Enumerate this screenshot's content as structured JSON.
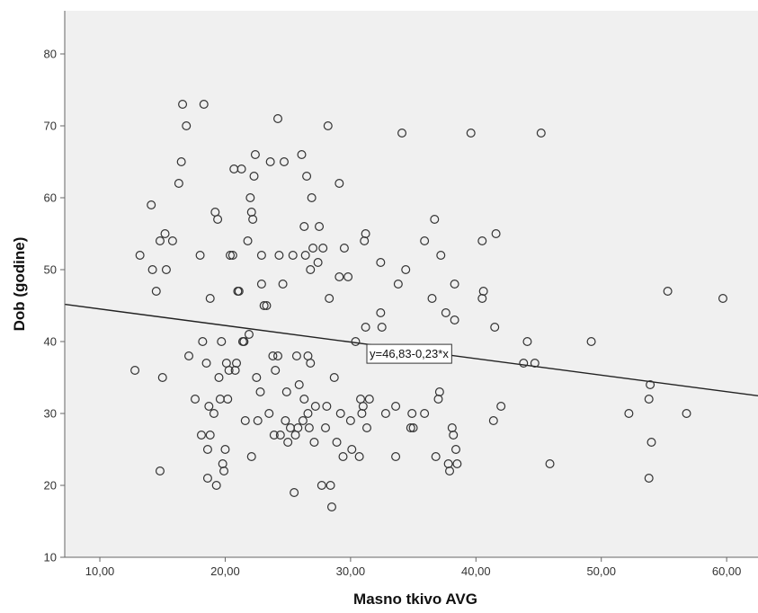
{
  "chart_data": {
    "type": "scatter",
    "xlabel": "Masno tkivo AVG",
    "ylabel": "Dob (godine)",
    "xlim": [
      7.2,
      62.5
    ],
    "ylim": [
      10,
      86
    ],
    "x_ticks": [
      10,
      20,
      30,
      40,
      50,
      60
    ],
    "x_tick_labels": [
      "10,00",
      "20,00",
      "30,00",
      "40,00",
      "50,00",
      "60,00"
    ],
    "y_ticks": [
      10,
      20,
      30,
      40,
      50,
      60,
      70,
      80
    ],
    "y_tick_labels": [
      "10",
      "20",
      "30",
      "40",
      "50",
      "60",
      "70",
      "80"
    ],
    "grid": false,
    "legend": "none",
    "colors": {
      "plot_background": "#f0f0f0",
      "marker": "#333333",
      "line": "#222222"
    },
    "regression": {
      "label": "y=46,83-0,23*x",
      "intercept": 46.83,
      "slope": -0.23,
      "x_range": [
        7.2,
        62.5
      ],
      "label_at": [
        31.3,
        38.3
      ]
    },
    "points": [
      [
        12.8,
        36
      ],
      [
        13.2,
        52
      ],
      [
        14.1,
        59
      ],
      [
        14.2,
        50
      ],
      [
        14.5,
        47
      ],
      [
        14.8,
        54
      ],
      [
        15.0,
        35
      ],
      [
        15.2,
        55
      ],
      [
        15.3,
        50
      ],
      [
        15.8,
        54
      ],
      [
        14.8,
        22
      ],
      [
        16.3,
        62
      ],
      [
        16.5,
        65
      ],
      [
        16.6,
        73
      ],
      [
        16.9,
        70
      ],
      [
        17.1,
        38
      ],
      [
        17.6,
        32
      ],
      [
        18.0,
        52
      ],
      [
        18.1,
        27
      ],
      [
        18.2,
        40
      ],
      [
        18.3,
        73
      ],
      [
        18.5,
        37
      ],
      [
        18.6,
        25
      ],
      [
        18.6,
        21
      ],
      [
        18.7,
        31
      ],
      [
        18.8,
        46
      ],
      [
        18.8,
        27
      ],
      [
        19.1,
        30
      ],
      [
        19.2,
        58
      ],
      [
        19.3,
        20
      ],
      [
        19.4,
        57
      ],
      [
        19.5,
        35
      ],
      [
        19.6,
        32
      ],
      [
        19.7,
        40
      ],
      [
        19.8,
        23
      ],
      [
        19.9,
        22
      ],
      [
        20.0,
        25
      ],
      [
        20.1,
        37
      ],
      [
        20.2,
        32
      ],
      [
        20.3,
        36
      ],
      [
        20.4,
        52
      ],
      [
        20.6,
        52
      ],
      [
        20.7,
        64
      ],
      [
        20.8,
        36
      ],
      [
        20.9,
        37
      ],
      [
        21.0,
        47
      ],
      [
        21.1,
        47
      ],
      [
        21.3,
        64
      ],
      [
        21.4,
        40
      ],
      [
        21.5,
        40
      ],
      [
        21.6,
        29
      ],
      [
        21.8,
        54
      ],
      [
        21.9,
        41
      ],
      [
        22.0,
        60
      ],
      [
        22.1,
        58
      ],
      [
        22.1,
        24
      ],
      [
        22.2,
        57
      ],
      [
        22.3,
        63
      ],
      [
        22.4,
        66
      ],
      [
        22.5,
        35
      ],
      [
        22.6,
        29
      ],
      [
        22.8,
        33
      ],
      [
        22.9,
        48
      ],
      [
        22.9,
        52
      ],
      [
        23.1,
        45
      ],
      [
        23.3,
        45
      ],
      [
        23.5,
        30
      ],
      [
        23.6,
        65
      ],
      [
        23.8,
        38
      ],
      [
        23.9,
        27
      ],
      [
        24.0,
        36
      ],
      [
        24.2,
        71
      ],
      [
        24.2,
        38
      ],
      [
        24.3,
        52
      ],
      [
        24.4,
        27
      ],
      [
        24.6,
        48
      ],
      [
        24.7,
        65
      ],
      [
        24.8,
        29
      ],
      [
        24.9,
        33
      ],
      [
        25.0,
        26
      ],
      [
        25.2,
        28
      ],
      [
        25.4,
        52
      ],
      [
        25.5,
        19
      ],
      [
        25.6,
        27
      ],
      [
        25.7,
        38
      ],
      [
        25.8,
        28
      ],
      [
        25.9,
        34
      ],
      [
        26.1,
        66
      ],
      [
        26.2,
        29
      ],
      [
        26.3,
        56
      ],
      [
        26.3,
        32
      ],
      [
        26.4,
        52
      ],
      [
        26.5,
        63
      ],
      [
        26.6,
        38
      ],
      [
        26.6,
        30
      ],
      [
        26.7,
        28
      ],
      [
        26.8,
        50
      ],
      [
        26.8,
        37
      ],
      [
        26.9,
        60
      ],
      [
        27.0,
        53
      ],
      [
        27.1,
        26
      ],
      [
        27.2,
        31
      ],
      [
        27.4,
        51
      ],
      [
        27.5,
        56
      ],
      [
        27.7,
        20
      ],
      [
        27.8,
        53
      ],
      [
        28.0,
        28
      ],
      [
        28.1,
        31
      ],
      [
        28.2,
        70
      ],
      [
        28.3,
        46
      ],
      [
        28.4,
        20
      ],
      [
        28.5,
        17
      ],
      [
        28.7,
        35
      ],
      [
        28.9,
        26
      ],
      [
        29.1,
        62
      ],
      [
        29.1,
        49
      ],
      [
        29.2,
        30
      ],
      [
        29.4,
        24
      ],
      [
        29.5,
        53
      ],
      [
        29.8,
        49
      ],
      [
        30.0,
        29
      ],
      [
        30.1,
        25
      ],
      [
        30.4,
        40
      ],
      [
        30.7,
        24
      ],
      [
        30.8,
        32
      ],
      [
        30.9,
        30
      ],
      [
        31.0,
        31
      ],
      [
        31.1,
        54
      ],
      [
        31.2,
        42
      ],
      [
        31.3,
        28
      ],
      [
        31.5,
        32
      ],
      [
        31.2,
        55
      ],
      [
        32.4,
        51
      ],
      [
        32.4,
        44
      ],
      [
        32.5,
        42
      ],
      [
        32.8,
        30
      ],
      [
        33.6,
        31
      ],
      [
        33.6,
        24
      ],
      [
        33.8,
        48
      ],
      [
        34.1,
        69
      ],
      [
        34.4,
        50
      ],
      [
        34.8,
        28
      ],
      [
        34.9,
        30
      ],
      [
        35.0,
        28
      ],
      [
        35.9,
        54
      ],
      [
        35.9,
        30
      ],
      [
        36.5,
        46
      ],
      [
        36.7,
        57
      ],
      [
        36.8,
        24
      ],
      [
        37.1,
        33
      ],
      [
        37.0,
        32
      ],
      [
        37.2,
        52
      ],
      [
        37.6,
        44
      ],
      [
        37.8,
        23
      ],
      [
        37.9,
        22
      ],
      [
        38.1,
        28
      ],
      [
        38.2,
        27
      ],
      [
        38.3,
        48
      ],
      [
        38.3,
        43
      ],
      [
        38.4,
        25
      ],
      [
        38.5,
        23
      ],
      [
        39.6,
        69
      ],
      [
        40.5,
        46
      ],
      [
        40.5,
        54
      ],
      [
        40.6,
        47
      ],
      [
        41.5,
        42
      ],
      [
        41.4,
        29
      ],
      [
        41.6,
        55
      ],
      [
        42.0,
        31
      ],
      [
        43.8,
        37
      ],
      [
        44.1,
        40
      ],
      [
        44.7,
        37
      ],
      [
        45.2,
        69
      ],
      [
        45.9,
        23
      ],
      [
        49.2,
        40
      ],
      [
        52.2,
        30
      ],
      [
        53.8,
        21
      ],
      [
        53.8,
        32
      ],
      [
        53.9,
        34
      ],
      [
        54.0,
        26
      ],
      [
        55.3,
        47
      ],
      [
        56.8,
        30
      ],
      [
        59.7,
        46
      ]
    ]
  }
}
